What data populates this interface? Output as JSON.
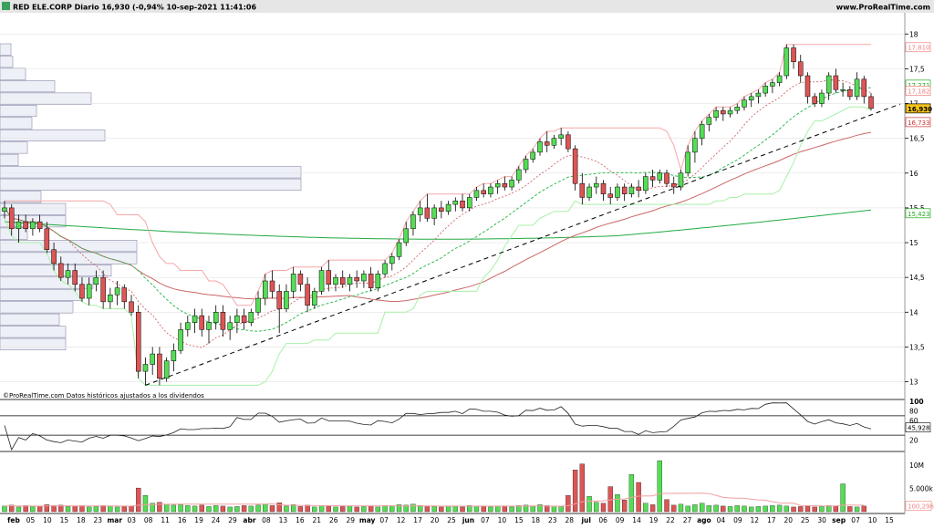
{
  "header": {
    "title": "RED ELE.CORP Diario 16,930 (-0,94% 10-sep-2021 11:41:06",
    "brand": "www.ProRealTime.com"
  },
  "price_panel": {
    "source_note": "©ProRealTime.com Datos históricos ajustados a los dividendos",
    "axis_ticks": [
      "18",
      "17,5",
      "17",
      "16,5",
      "16",
      "15,5",
      "15",
      "14,5",
      "14",
      "13,5",
      "13"
    ],
    "tags": [
      {
        "label": "17,810",
        "value": 17.81,
        "color": "#f08080",
        "bg": "#ffffff"
      },
      {
        "label": "17,271",
        "value": 17.271,
        "color": "#22aa22",
        "bg": "#ffffff"
      },
      {
        "label": "17,182",
        "value": 17.182,
        "color": "#f08080",
        "bg": "#ffffff"
      },
      {
        "label": "16,930",
        "value": 16.93,
        "color": "#000000",
        "bg": "#f5c518"
      },
      {
        "label": "16,733",
        "value": 16.733,
        "color": "#cc3333",
        "bg": "#ffffff"
      },
      {
        "label": "15,423",
        "value": 15.423,
        "color": "#22aa22",
        "bg": "#ffffff"
      }
    ]
  },
  "rsi_panel": {
    "axis_ticks": [
      "100",
      "80",
      "60",
      "20"
    ],
    "tag": {
      "label": "45,928",
      "value": 45.928
    }
  },
  "volume_panel": {
    "axis_ticks": [
      "10M",
      "5.000k"
    ],
    "tag": {
      "label": "100,296"
    }
  },
  "x_axis": {
    "labels": [
      {
        "text": "feb",
        "bold": true
      },
      {
        "text": "05"
      },
      {
        "text": "10"
      },
      {
        "text": "15"
      },
      {
        "text": "18"
      },
      {
        "text": "23"
      },
      {
        "text": "mar",
        "bold": true
      },
      {
        "text": "03"
      },
      {
        "text": "08"
      },
      {
        "text": "11"
      },
      {
        "text": "16"
      },
      {
        "text": "19"
      },
      {
        "text": "24"
      },
      {
        "text": "29"
      },
      {
        "text": "abr",
        "bold": true
      },
      {
        "text": "08"
      },
      {
        "text": "13"
      },
      {
        "text": "16"
      },
      {
        "text": "21"
      },
      {
        "text": "26"
      },
      {
        "text": "29"
      },
      {
        "text": "may",
        "bold": true
      },
      {
        "text": "07"
      },
      {
        "text": "12"
      },
      {
        "text": "17"
      },
      {
        "text": "20"
      },
      {
        "text": "25"
      },
      {
        "text": "jun",
        "bold": true
      },
      {
        "text": "07"
      },
      {
        "text": "10"
      },
      {
        "text": "15"
      },
      {
        "text": "18"
      },
      {
        "text": "23"
      },
      {
        "text": "28"
      },
      {
        "text": "jul",
        "bold": true
      },
      {
        "text": "06"
      },
      {
        "text": "09"
      },
      {
        "text": "14"
      },
      {
        "text": "19"
      },
      {
        "text": "22"
      },
      {
        "text": "27"
      },
      {
        "text": "ago",
        "bold": true
      },
      {
        "text": "04"
      },
      {
        "text": "09"
      },
      {
        "text": "12"
      },
      {
        "text": "17"
      },
      {
        "text": "20"
      },
      {
        "text": "25"
      },
      {
        "text": "30"
      },
      {
        "text": "sep",
        "bold": true
      },
      {
        "text": "07"
      },
      {
        "text": "10"
      },
      {
        "text": "15"
      }
    ]
  },
  "chart_data": {
    "type": "candlestick",
    "ylim": [
      12.85,
      18.2
    ],
    "up_color": "#55dd55",
    "down_color": "#dd5555",
    "candles": [
      [
        15.45,
        15.6,
        15.35,
        15.5
      ],
      [
        15.5,
        15.55,
        15.1,
        15.2
      ],
      [
        15.2,
        15.4,
        15.0,
        15.3
      ],
      [
        15.3,
        15.4,
        15.15,
        15.2
      ],
      [
        15.2,
        15.35,
        15.1,
        15.3
      ],
      [
        15.3,
        15.4,
        15.15,
        15.2
      ],
      [
        15.2,
        15.3,
        14.85,
        14.9
      ],
      [
        14.9,
        15.0,
        14.6,
        14.7
      ],
      [
        14.7,
        14.8,
        14.45,
        14.5
      ],
      [
        14.5,
        14.7,
        14.4,
        14.6
      ],
      [
        14.6,
        14.7,
        14.3,
        14.4
      ],
      [
        14.4,
        14.5,
        14.15,
        14.2
      ],
      [
        14.2,
        14.5,
        14.1,
        14.4
      ],
      [
        14.4,
        14.6,
        14.3,
        14.5
      ],
      [
        14.5,
        14.6,
        14.05,
        14.15
      ],
      [
        14.15,
        14.35,
        14.05,
        14.25
      ],
      [
        14.25,
        14.45,
        14.1,
        14.35
      ],
      [
        14.35,
        14.4,
        14.05,
        14.15
      ],
      [
        14.15,
        14.25,
        13.95,
        14.0
      ],
      [
        14.0,
        14.1,
        13.05,
        13.15
      ],
      [
        13.15,
        13.35,
        12.95,
        13.25
      ],
      [
        13.25,
        13.5,
        13.1,
        13.4
      ],
      [
        13.4,
        13.5,
        12.95,
        13.05
      ],
      [
        13.05,
        13.35,
        13.0,
        13.3
      ],
      [
        13.3,
        13.55,
        13.15,
        13.45
      ],
      [
        13.45,
        13.85,
        13.4,
        13.75
      ],
      [
        13.75,
        13.95,
        13.65,
        13.85
      ],
      [
        13.85,
        14.05,
        13.7,
        13.95
      ],
      [
        13.95,
        14.05,
        13.65,
        13.75
      ],
      [
        13.75,
        13.95,
        13.55,
        13.85
      ],
      [
        13.85,
        14.1,
        13.75,
        14.0
      ],
      [
        14.0,
        14.1,
        13.65,
        13.75
      ],
      [
        13.75,
        13.95,
        13.6,
        13.85
      ],
      [
        13.85,
        14.05,
        13.7,
        13.95
      ],
      [
        13.95,
        14.05,
        13.75,
        13.85
      ],
      [
        13.85,
        14.05,
        13.8,
        14.0
      ],
      [
        14.0,
        14.3,
        13.95,
        14.2
      ],
      [
        14.2,
        14.55,
        14.1,
        14.45
      ],
      [
        14.45,
        14.6,
        14.2,
        14.3
      ],
      [
        14.3,
        14.4,
        13.7,
        14.05
      ],
      [
        14.05,
        14.4,
        14.0,
        14.3
      ],
      [
        14.3,
        14.65,
        14.2,
        14.55
      ],
      [
        14.55,
        14.6,
        14.3,
        14.4
      ],
      [
        14.4,
        14.5,
        14.0,
        14.1
      ],
      [
        14.1,
        14.35,
        14.05,
        14.3
      ],
      [
        14.3,
        14.65,
        14.25,
        14.6
      ],
      [
        14.6,
        14.75,
        14.3,
        14.4
      ],
      [
        14.4,
        14.55,
        14.3,
        14.5
      ],
      [
        14.5,
        14.6,
        14.35,
        14.4
      ],
      [
        14.4,
        14.55,
        14.3,
        14.5
      ],
      [
        14.5,
        14.6,
        14.35,
        14.45
      ],
      [
        14.45,
        14.6,
        14.35,
        14.55
      ],
      [
        14.55,
        14.65,
        14.3,
        14.35
      ],
      [
        14.35,
        14.6,
        14.3,
        14.55
      ],
      [
        14.55,
        14.75,
        14.5,
        14.7
      ],
      [
        14.7,
        14.85,
        14.6,
        14.8
      ],
      [
        14.8,
        15.05,
        14.75,
        15.0
      ],
      [
        15.0,
        15.3,
        14.95,
        15.2
      ],
      [
        15.2,
        15.45,
        15.1,
        15.4
      ],
      [
        15.4,
        15.6,
        15.3,
        15.5
      ],
      [
        15.5,
        15.7,
        15.3,
        15.35
      ],
      [
        15.35,
        15.55,
        15.25,
        15.5
      ],
      [
        15.5,
        15.6,
        15.35,
        15.45
      ],
      [
        15.45,
        15.6,
        15.4,
        15.55
      ],
      [
        15.55,
        15.65,
        15.45,
        15.6
      ],
      [
        15.6,
        15.7,
        15.45,
        15.5
      ],
      [
        15.5,
        15.7,
        15.45,
        15.65
      ],
      [
        15.65,
        15.8,
        15.6,
        15.75
      ],
      [
        15.75,
        15.85,
        15.65,
        15.7
      ],
      [
        15.7,
        15.85,
        15.65,
        15.8
      ],
      [
        15.8,
        15.9,
        15.7,
        15.85
      ],
      [
        15.85,
        15.95,
        15.75,
        15.8
      ],
      [
        15.8,
        15.95,
        15.75,
        15.9
      ],
      [
        15.9,
        16.1,
        15.85,
        16.05
      ],
      [
        16.05,
        16.25,
        16.0,
        16.2
      ],
      [
        16.2,
        16.35,
        16.15,
        16.3
      ],
      [
        16.3,
        16.5,
        16.25,
        16.45
      ],
      [
        16.45,
        16.6,
        16.3,
        16.4
      ],
      [
        16.4,
        16.55,
        16.35,
        16.5
      ],
      [
        16.5,
        16.65,
        16.4,
        16.55
      ],
      [
        16.55,
        16.6,
        16.3,
        16.35
      ],
      [
        16.35,
        16.4,
        15.75,
        15.85
      ],
      [
        15.85,
        16.0,
        15.55,
        15.65
      ],
      [
        15.65,
        15.85,
        15.6,
        15.8
      ],
      [
        15.8,
        15.95,
        15.7,
        15.85
      ],
      [
        15.85,
        15.9,
        15.6,
        15.7
      ],
      [
        15.7,
        15.8,
        15.55,
        15.65
      ],
      [
        15.65,
        15.85,
        15.6,
        15.8
      ],
      [
        15.8,
        15.85,
        15.6,
        15.7
      ],
      [
        15.7,
        15.85,
        15.65,
        15.8
      ],
      [
        15.8,
        15.9,
        15.65,
        15.75
      ],
      [
        15.75,
        16.0,
        15.7,
        15.95
      ],
      [
        15.95,
        16.05,
        15.8,
        15.9
      ],
      [
        15.9,
        16.05,
        15.85,
        16.0
      ],
      [
        16.0,
        16.05,
        15.8,
        15.85
      ],
      [
        15.85,
        15.95,
        15.7,
        15.8
      ],
      [
        15.8,
        16.05,
        15.75,
        16.0
      ],
      [
        16.0,
        16.4,
        15.95,
        16.3
      ],
      [
        16.3,
        16.6,
        16.15,
        16.5
      ],
      [
        16.5,
        16.75,
        16.4,
        16.7
      ],
      [
        16.7,
        16.85,
        16.6,
        16.8
      ],
      [
        16.8,
        16.95,
        16.75,
        16.9
      ],
      [
        16.9,
        16.95,
        16.75,
        16.85
      ],
      [
        16.85,
        16.95,
        16.8,
        16.9
      ],
      [
        16.9,
        17.0,
        16.85,
        16.95
      ],
      [
        16.95,
        17.1,
        16.9,
        17.05
      ],
      [
        17.05,
        17.15,
        16.95,
        17.1
      ],
      [
        17.1,
        17.2,
        17.0,
        17.15
      ],
      [
        17.15,
        17.3,
        17.1,
        17.25
      ],
      [
        17.25,
        17.35,
        17.15,
        17.3
      ],
      [
        17.3,
        17.45,
        17.25,
        17.4
      ],
      [
        17.4,
        17.85,
        17.35,
        17.8
      ],
      [
        17.8,
        17.85,
        17.5,
        17.6
      ],
      [
        17.6,
        17.7,
        17.3,
        17.4
      ],
      [
        17.4,
        17.45,
        17.0,
        17.1
      ],
      [
        17.1,
        17.15,
        16.95,
        17.0
      ],
      [
        17.0,
        17.2,
        16.95,
        17.15
      ],
      [
        17.15,
        17.45,
        17.05,
        17.4
      ],
      [
        17.4,
        17.5,
        17.15,
        17.2
      ],
      [
        17.2,
        17.3,
        17.1,
        17.2
      ],
      [
        17.2,
        17.25,
        17.05,
        17.1
      ],
      [
        17.1,
        17.45,
        17.05,
        17.35
      ],
      [
        17.35,
        17.4,
        17.0,
        17.1
      ],
      [
        17.1,
        17.15,
        16.9,
        16.93
      ]
    ],
    "volumes": [
      1.2,
      1.4,
      1.0,
      1.3,
      1.1,
      1.2,
      1.5,
      1.3,
      1.4,
      1.1,
      1.2,
      1.3,
      1.0,
      1.1,
      1.3,
      1.2,
      1.0,
      1.1,
      1.2,
      5.1,
      3.5,
      1.8,
      2.0,
      1.6,
      1.4,
      1.5,
      1.3,
      1.2,
      1.4,
      1.1,
      1.3,
      1.2,
      1.0,
      1.1,
      1.3,
      1.2,
      1.4,
      1.6,
      1.3,
      1.9,
      1.2,
      1.5,
      1.1,
      1.4,
      1.0,
      1.3,
      1.2,
      1.0,
      1.1,
      1.2,
      1.0,
      1.1,
      1.2,
      1.0,
      1.3,
      1.2,
      1.5,
      1.4,
      1.6,
      1.3,
      1.2,
      1.1,
      1.0,
      1.2,
      1.1,
      1.0,
      1.3,
      1.2,
      1.1,
      1.0,
      1.2,
      1.1,
      1.0,
      1.3,
      1.4,
      1.2,
      1.5,
      1.3,
      1.2,
      1.1,
      3.5,
      9.0,
      10.3,
      3.3,
      2.0,
      1.8,
      5.4,
      3.7,
      2.5,
      8.0,
      6.3,
      1.8,
      1.5,
      11.0,
      2.6,
      1.4,
      1.6,
      1.2,
      1.5,
      1.8,
      1.3,
      1.4,
      1.2,
      1.1,
      1.3,
      1.2,
      1.0,
      1.1,
      1.2,
      1.3,
      1.4,
      1.2,
      1.0,
      1.1,
      1.2,
      1.0,
      1.1,
      1.3,
      1.2,
      6.0,
      1.1,
      1.0,
      1.2
    ],
    "support_line": {
      "from": [
        20,
        12.95
      ],
      "to": [
        126,
        16.95
      ]
    }
  }
}
